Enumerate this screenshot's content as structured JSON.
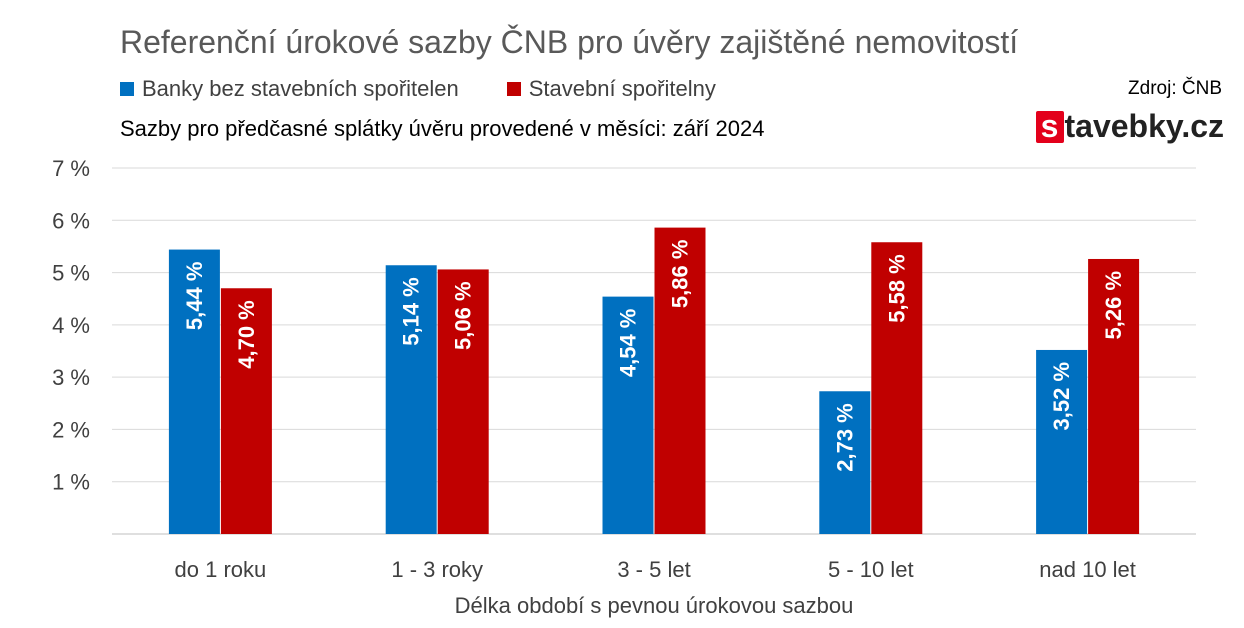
{
  "title": "Referenční úrokové sazby ČNB pro úvěry zajištěné nemovitostí",
  "subtitle": "Sazby pro předčasné splátky úvěru provedené v měsíci: září 2024",
  "source": "Zdroj: ČNB",
  "brand": {
    "mark": "s",
    "rest": "tavebky.cz",
    "mark_color": "#e3001b"
  },
  "chart_data": {
    "type": "bar",
    "categories": [
      "do 1 roku",
      "1 - 3 roky",
      "3 - 5 let",
      "5 - 10 let",
      "nad 10 let"
    ],
    "series": [
      {
        "name": "Banky bez stavebních spořitelen",
        "color": "#0070c0",
        "values": [
          5.44,
          5.14,
          4.54,
          2.73,
          3.52
        ],
        "labels": [
          "5,44 %",
          "5,14 %",
          "4,54 %",
          "2,73 %",
          "3,52 %"
        ]
      },
      {
        "name": "Stavební spořitelny",
        "color": "#c00000",
        "values": [
          4.7,
          5.06,
          5.86,
          5.58,
          5.26
        ],
        "labels": [
          "4,70 %",
          "5,06 %",
          "5,86 %",
          "5,58 %",
          "5,26 %"
        ]
      }
    ],
    "xlabel": "Délka období s pevnou úrokovou sazbou",
    "ylabel": "",
    "ylim": [
      0,
      7
    ],
    "yticks": [
      1,
      2,
      3,
      4,
      5,
      6,
      7
    ],
    "ytick_labels": [
      "1 %",
      "2 %",
      "3 %",
      "4 %",
      "5 %",
      "6 %",
      "7 %"
    ],
    "grid": true,
    "legend_position": "top-left"
  }
}
